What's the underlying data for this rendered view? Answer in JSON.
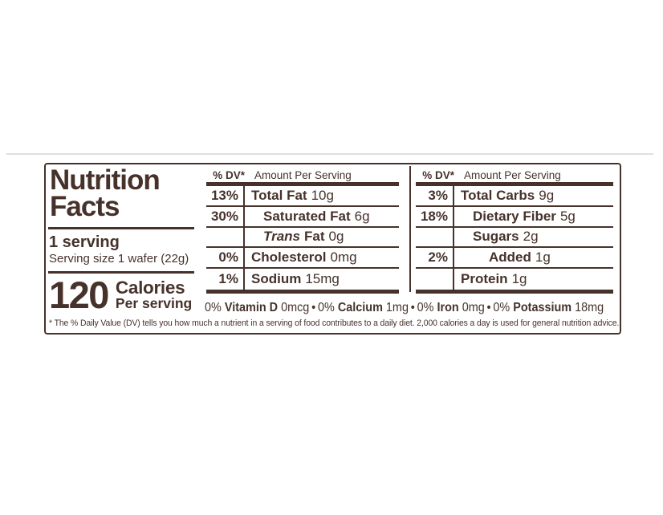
{
  "ink": "#46322b",
  "label": {
    "title_line1": "Nutrition",
    "title_line2": "Facts",
    "serving_count": "1 serving",
    "serving_size": "Serving size 1 wafer (22g)",
    "calories": {
      "value": "120",
      "label": "Calories",
      "sub": "Per serving"
    }
  },
  "tables": [
    {
      "dv_header": "% DV*",
      "amount_header": "Amount Per Serving",
      "rows": [
        {
          "dv": "13%",
          "name": "Total Fat",
          "amount": "10g"
        },
        {
          "dv": "30%",
          "name": "Saturated Fat",
          "amount": "6g"
        },
        {
          "dv": "",
          "name_italic": "Trans",
          "name": "Fat",
          "amount": "0g"
        },
        {
          "dv": "0%",
          "name": "Cholesterol",
          "amount": "0mg"
        },
        {
          "dv": "1%",
          "name": "Sodium",
          "amount": "15mg"
        }
      ]
    },
    {
      "dv_header": "% DV*",
      "amount_header": "Amount Per Serving",
      "rows": [
        {
          "dv": "3%",
          "name": "Total Carbs",
          "amount": "9g"
        },
        {
          "dv": "18%",
          "name": "Dietary Fiber",
          "amount": "5g"
        },
        {
          "dv": "",
          "name": "Sugars",
          "amount": "2g"
        },
        {
          "dv": "2%",
          "name": "Added",
          "amount": "1g"
        },
        {
          "dv": "",
          "name": "Protein",
          "amount": "1g"
        }
      ]
    }
  ],
  "micronutrients": {
    "bullet": "•",
    "items": [
      {
        "dv": "0%",
        "name": "Vitamin D",
        "amount": "0mcg"
      },
      {
        "dv": "0%",
        "name": "Calcium",
        "amount": "1mg"
      },
      {
        "dv": "0%",
        "name": "Iron",
        "amount": "0mg"
      },
      {
        "dv": "0%",
        "name": "Potassium",
        "amount": "18mg"
      }
    ]
  },
  "footnote": "* The % Daily Value (DV) tells you how much a nutrient in a serving of food contributes to a daily diet. 2,000 calories a day is used for general nutrition advice."
}
